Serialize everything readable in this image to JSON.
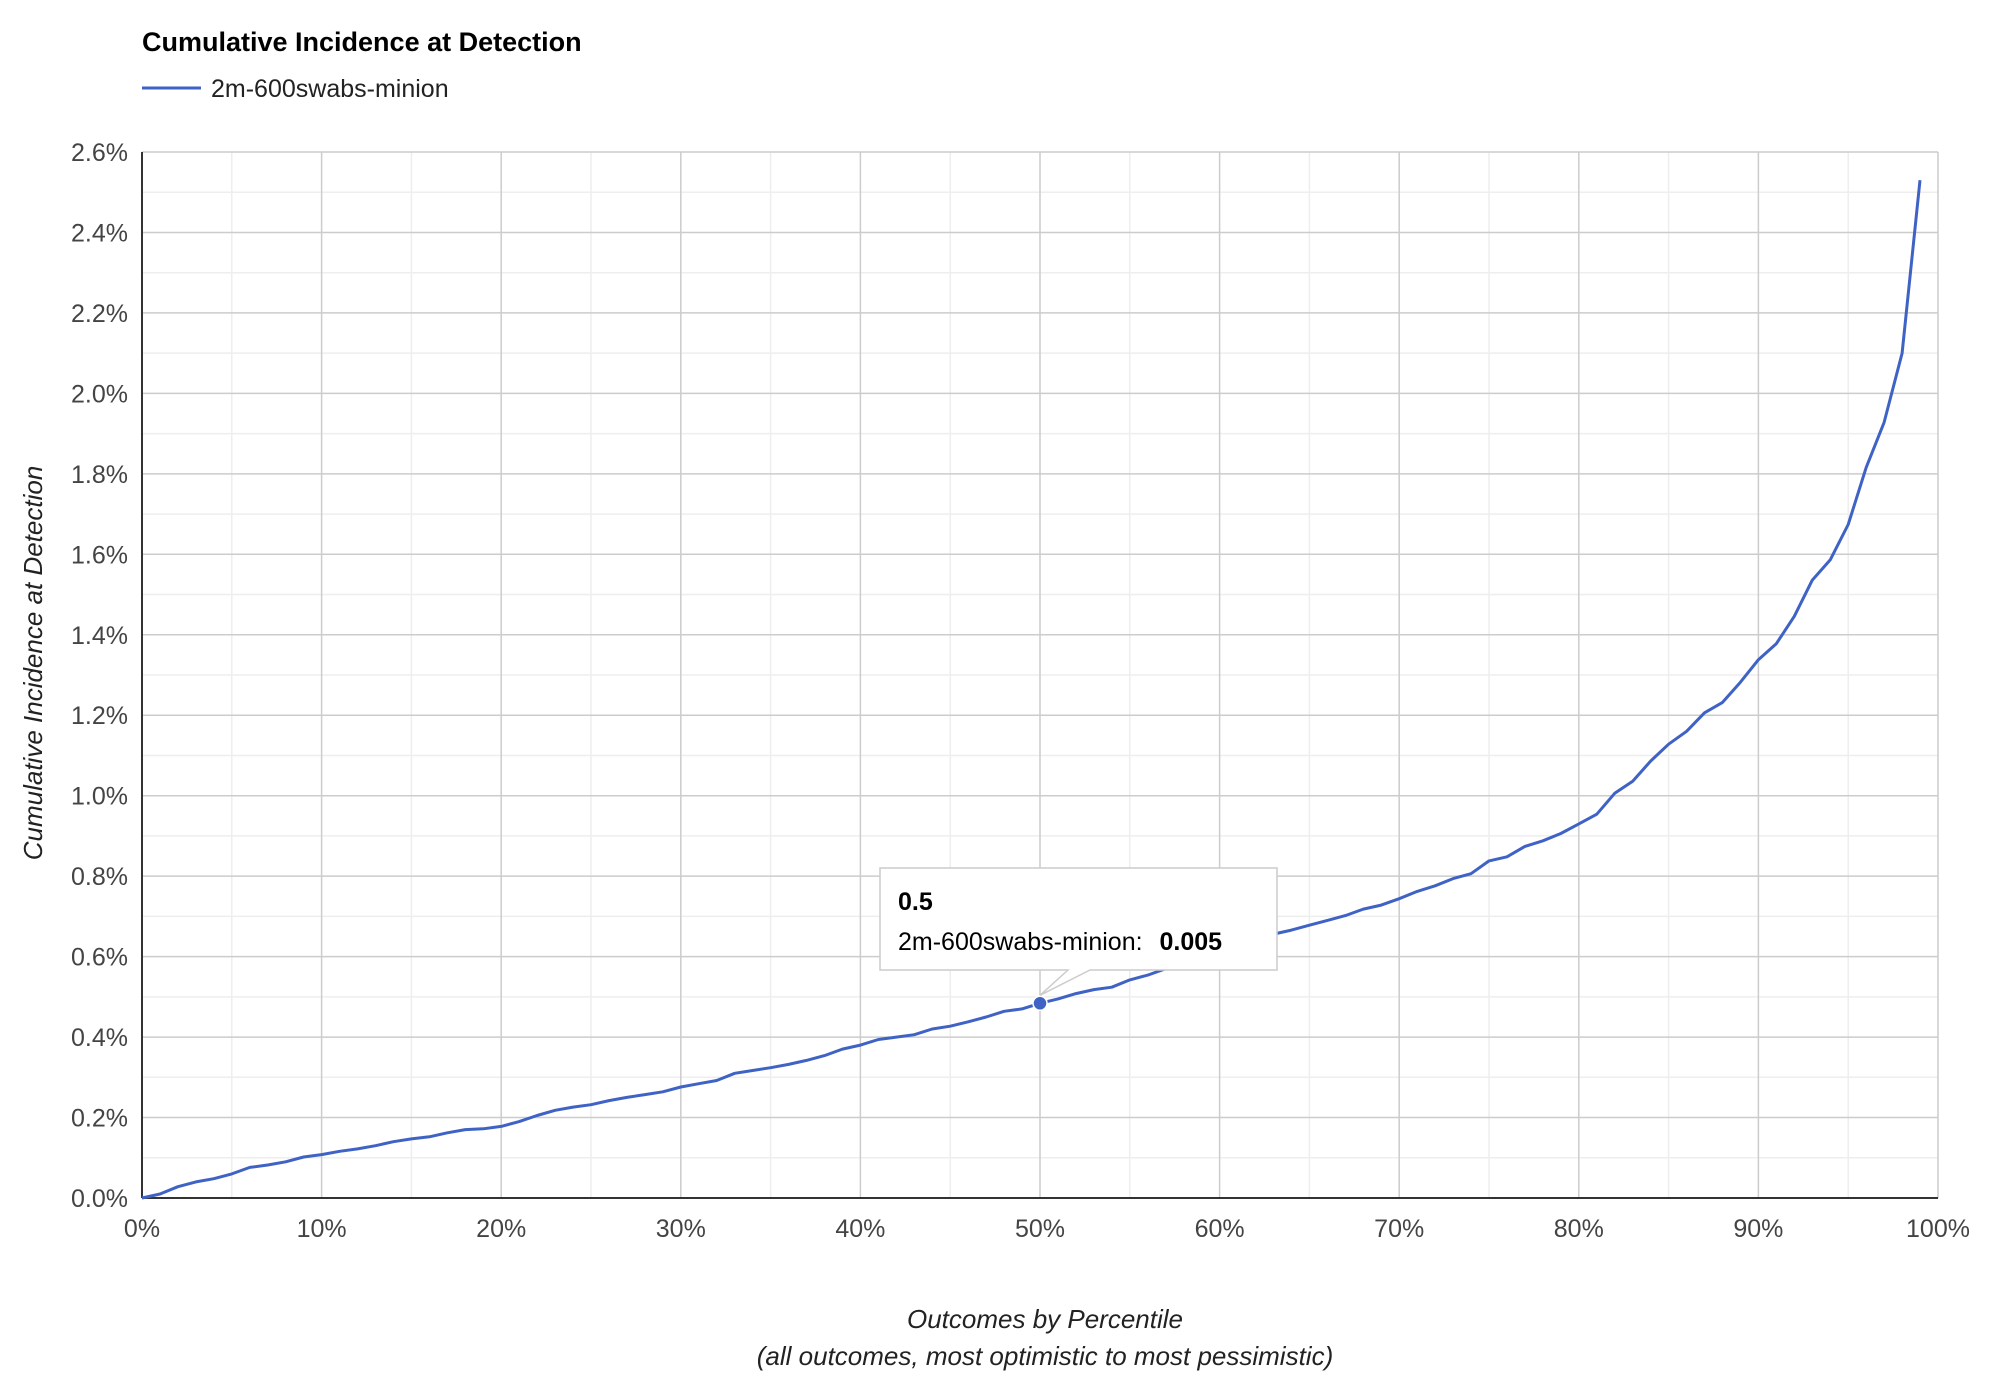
{
  "chart_data": {
    "type": "line",
    "title": "Cumulative Incidence at Detection",
    "xlabel_line1": "Outcomes by Percentile",
    "xlabel_line2": "(all outcomes, most optimistic to most pessimistic)",
    "ylabel": "Cumulative Incidence at Detection",
    "xlim": [
      0,
      1
    ],
    "ylim": [
      0,
      0.026
    ],
    "x_ticks": [
      "0%",
      "10%",
      "20%",
      "30%",
      "40%",
      "50%",
      "60%",
      "70%",
      "80%",
      "90%",
      "100%"
    ],
    "y_ticks": [
      "0.0%",
      "0.2%",
      "0.4%",
      "0.6%",
      "0.8%",
      "1.0%",
      "1.2%",
      "1.4%",
      "1.6%",
      "1.8%",
      "2.0%",
      "2.2%",
      "2.4%",
      "2.6%"
    ],
    "grid": true,
    "legend_position": "top-left",
    "series": [
      {
        "name": "2m-600swabs-minion",
        "color": "#3f62c5",
        "points": [
          [
            0.0,
            0.0
          ],
          [
            0.01,
            0.0001
          ],
          [
            0.02,
            0.00028
          ],
          [
            0.03,
            0.0004
          ],
          [
            0.04,
            0.00048
          ],
          [
            0.05,
            0.0006
          ],
          [
            0.06,
            0.00076
          ],
          [
            0.07,
            0.00082
          ],
          [
            0.08,
            0.0009
          ],
          [
            0.09,
            0.00102
          ],
          [
            0.1,
            0.00108
          ],
          [
            0.11,
            0.00116
          ],
          [
            0.12,
            0.00122
          ],
          [
            0.13,
            0.0013
          ],
          [
            0.14,
            0.0014
          ],
          [
            0.15,
            0.00147
          ],
          [
            0.16,
            0.00152
          ],
          [
            0.17,
            0.00162
          ],
          [
            0.18,
            0.0017
          ],
          [
            0.19,
            0.00172
          ],
          [
            0.2,
            0.00178
          ],
          [
            0.21,
            0.0019
          ],
          [
            0.22,
            0.00205
          ],
          [
            0.23,
            0.00218
          ],
          [
            0.24,
            0.00226
          ],
          [
            0.25,
            0.00232
          ],
          [
            0.26,
            0.00242
          ],
          [
            0.27,
            0.0025
          ],
          [
            0.28,
            0.00257
          ],
          [
            0.29,
            0.00264
          ],
          [
            0.3,
            0.00276
          ],
          [
            0.31,
            0.00284
          ],
          [
            0.32,
            0.00292
          ],
          [
            0.33,
            0.0031
          ],
          [
            0.34,
            0.00317
          ],
          [
            0.35,
            0.00324
          ],
          [
            0.36,
            0.00332
          ],
          [
            0.37,
            0.00342
          ],
          [
            0.38,
            0.00354
          ],
          [
            0.39,
            0.0037
          ],
          [
            0.4,
            0.0038
          ],
          [
            0.41,
            0.00394
          ],
          [
            0.42,
            0.004
          ],
          [
            0.43,
            0.00406
          ],
          [
            0.44,
            0.0042
          ],
          [
            0.45,
            0.00427
          ],
          [
            0.46,
            0.00438
          ],
          [
            0.47,
            0.0045
          ],
          [
            0.48,
            0.00464
          ],
          [
            0.49,
            0.0047
          ],
          [
            0.5,
            0.00484
          ],
          [
            0.51,
            0.00495
          ],
          [
            0.52,
            0.00508
          ],
          [
            0.53,
            0.00518
          ],
          [
            0.54,
            0.00524
          ],
          [
            0.55,
            0.00542
          ],
          [
            0.56,
            0.00554
          ],
          [
            0.57,
            0.0057
          ],
          [
            0.58,
            0.0059
          ],
          [
            0.59,
            0.00606
          ],
          [
            0.6,
            0.00618
          ],
          [
            0.61,
            0.0063
          ],
          [
            0.62,
            0.00642
          ],
          [
            0.63,
            0.00656
          ],
          [
            0.64,
            0.00666
          ],
          [
            0.65,
            0.00678
          ],
          [
            0.66,
            0.0069
          ],
          [
            0.67,
            0.00702
          ],
          [
            0.68,
            0.00718
          ],
          [
            0.69,
            0.00728
          ],
          [
            0.7,
            0.00744
          ],
          [
            0.71,
            0.00762
          ],
          [
            0.72,
            0.00776
          ],
          [
            0.73,
            0.00794
          ],
          [
            0.74,
            0.00806
          ],
          [
            0.75,
            0.00838
          ],
          [
            0.76,
            0.00848
          ],
          [
            0.77,
            0.00874
          ],
          [
            0.78,
            0.00888
          ],
          [
            0.79,
            0.00906
          ],
          [
            0.8,
            0.0093
          ],
          [
            0.81,
            0.00954
          ],
          [
            0.82,
            0.01006
          ],
          [
            0.83,
            0.01036
          ],
          [
            0.84,
            0.01086
          ],
          [
            0.85,
            0.01128
          ],
          [
            0.86,
            0.0116
          ],
          [
            0.87,
            0.01206
          ],
          [
            0.88,
            0.01232
          ],
          [
            0.89,
            0.01282
          ],
          [
            0.9,
            0.01338
          ],
          [
            0.91,
            0.01378
          ],
          [
            0.92,
            0.01446
          ],
          [
            0.93,
            0.01536
          ],
          [
            0.94,
            0.01586
          ],
          [
            0.95,
            0.01674
          ],
          [
            0.96,
            0.01816
          ],
          [
            0.97,
            0.01928
          ],
          [
            0.98,
            0.021
          ],
          [
            0.99,
            0.0253
          ]
        ]
      }
    ],
    "tooltip": {
      "x_value": "0.5",
      "series_label": "2m-600swabs-minion:",
      "y_value": "0.005",
      "point": [
        0.5,
        0.00484
      ]
    }
  }
}
